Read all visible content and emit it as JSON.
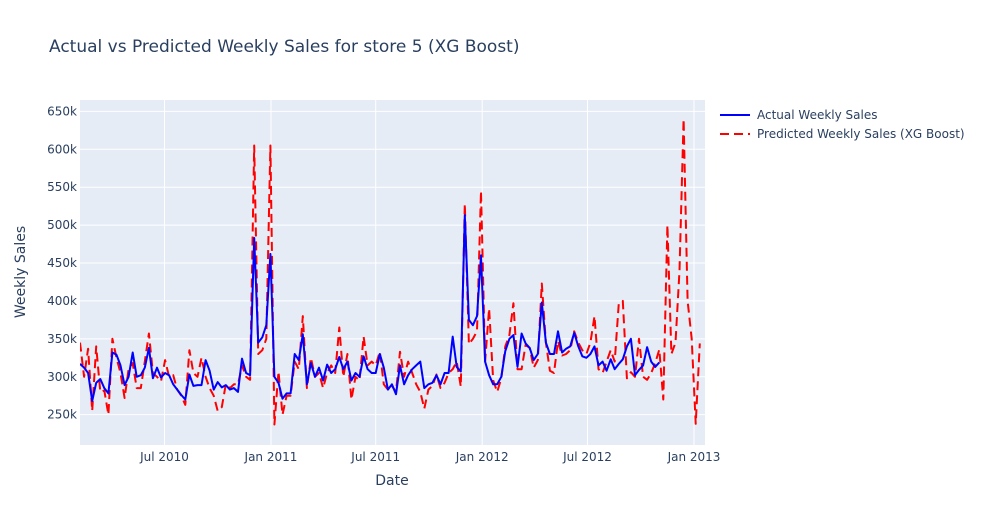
{
  "chart_data": {
    "type": "line",
    "title": "Actual vs Predicted Weekly Sales for store 5 (XG Boost)",
    "xlabel": "Date",
    "ylabel": "Weekly Sales",
    "x_range": [
      "2010-02-05",
      "2013-01-20"
    ],
    "ylim": [
      210000,
      665000
    ],
    "grid": true,
    "legend_position": "top-right",
    "x_ticks": [
      {
        "date": "2010-07-01",
        "label": "Jul 2010"
      },
      {
        "date": "2011-01-01",
        "label": "Jan 2011"
      },
      {
        "date": "2011-07-01",
        "label": "Jul 2011"
      },
      {
        "date": "2012-01-01",
        "label": "Jan 2012"
      },
      {
        "date": "2012-07-01",
        "label": "Jul 2012"
      },
      {
        "date": "2013-01-01",
        "label": "Jan 2013"
      }
    ],
    "y_ticks": [
      {
        "value": 250000,
        "label": "250k"
      },
      {
        "value": 300000,
        "label": "300k"
      },
      {
        "value": 350000,
        "label": "350k"
      },
      {
        "value": 400000,
        "label": "400k"
      },
      {
        "value": 450000,
        "label": "450k"
      },
      {
        "value": 500000,
        "label": "500k"
      },
      {
        "value": 550000,
        "label": "550k"
      },
      {
        "value": 600000,
        "label": "600k"
      },
      {
        "value": 650000,
        "label": "650k"
      }
    ],
    "series": [
      {
        "name": "Actual Weekly Sales",
        "color": "#0000ff",
        "dash": "solid",
        "start": "2010-02-05",
        "step_days": 7,
        "values": [
          317000,
          312000,
          305000,
          268000,
          292000,
          297000,
          285000,
          278000,
          332000,
          329000,
          315000,
          289000,
          300000,
          332000,
          300000,
          302000,
          312000,
          338000,
          298000,
          312000,
          299000,
          305000,
          302000,
          290000,
          283000,
          276000,
          270000,
          303000,
          288000,
          289000,
          289000,
          322000,
          308000,
          283000,
          293000,
          286000,
          289000,
          283000,
          285000,
          280000,
          324000,
          305000,
          302000,
          483000,
          345000,
          352000,
          368000,
          462000,
          300000,
          292000,
          271000,
          278000,
          278000,
          330000,
          322000,
          356000,
          290000,
          318000,
          300000,
          312000,
          295000,
          316000,
          305000,
          310000,
          326000,
          310000,
          320000,
          295000,
          305000,
          300000,
          327000,
          310000,
          305000,
          305000,
          330000,
          312000,
          283000,
          290000,
          277000,
          315000,
          290000,
          302000,
          310000,
          315000,
          320000,
          285000,
          290000,
          292000,
          302000,
          290000,
          305000,
          305000,
          353000,
          313000,
          307000,
          513000,
          375000,
          368000,
          380000,
          460000,
          320000,
          302000,
          290000,
          290000,
          300000,
          334000,
          350000,
          355000,
          313000,
          357000,
          344000,
          338000,
          322000,
          330000,
          398000,
          345000,
          330000,
          330000,
          360000,
          332000,
          337000,
          340000,
          358000,
          340000,
          327000,
          325000,
          330000,
          340000,
          315000,
          320000,
          308000,
          323000,
          310000,
          317000,
          323000,
          340000,
          350000,
          302000,
          309000,
          315000,
          339000,
          320000,
          313000,
          319000
        ]
      },
      {
        "name": "Predicted Weekly Sales (XG Boost)",
        "color": "#ff0000",
        "dash": "dash",
        "start": "2010-02-05",
        "step_days": 7,
        "values": [
          345000,
          300000,
          337000,
          255000,
          340000,
          280000,
          282000,
          250000,
          350000,
          325000,
          305000,
          272000,
          310000,
          318000,
          285000,
          285000,
          320000,
          357000,
          305000,
          300000,
          294000,
          322000,
          300000,
          302000,
          283000,
          275000,
          263000,
          335000,
          305000,
          300000,
          325000,
          300000,
          285000,
          275000,
          255000,
          260000,
          290000,
          285000,
          290000,
          290000,
          315000,
          300000,
          296000,
          605000,
          330000,
          335000,
          350000,
          605000,
          237000,
          307000,
          250000,
          275000,
          275000,
          320000,
          310000,
          380000,
          285000,
          325000,
          300000,
          305000,
          285000,
          305000,
          315000,
          305000,
          365000,
          300000,
          330000,
          270000,
          300000,
          295000,
          353000,
          315000,
          320000,
          315000,
          333000,
          290000,
          283000,
          288000,
          280000,
          333000,
          300000,
          320000,
          305000,
          290000,
          280000,
          258000,
          283000,
          288000,
          303000,
          285000,
          292000,
          305000,
          310000,
          320000,
          287000,
          528000,
          343000,
          350000,
          360000,
          545000,
          320000,
          390000,
          295000,
          280000,
          298000,
          340000,
          355000,
          397000,
          310000,
          310000,
          342000,
          338000,
          312000,
          322000,
          423000,
          345000,
          308000,
          305000,
          347000,
          328000,
          330000,
          335000,
          360000,
          345000,
          335000,
          330000,
          345000,
          380000,
          310000,
          305000,
          320000,
          335000,
          320000,
          397000,
          400000,
          298000,
          306000,
          300000,
          350000,
          300000,
          296000,
          305000,
          318000,
          336000,
          270000,
          500000,
          330000,
          345000,
          440000,
          640000,
          400000,
          350000,
          238000,
          344000
        ]
      }
    ]
  }
}
